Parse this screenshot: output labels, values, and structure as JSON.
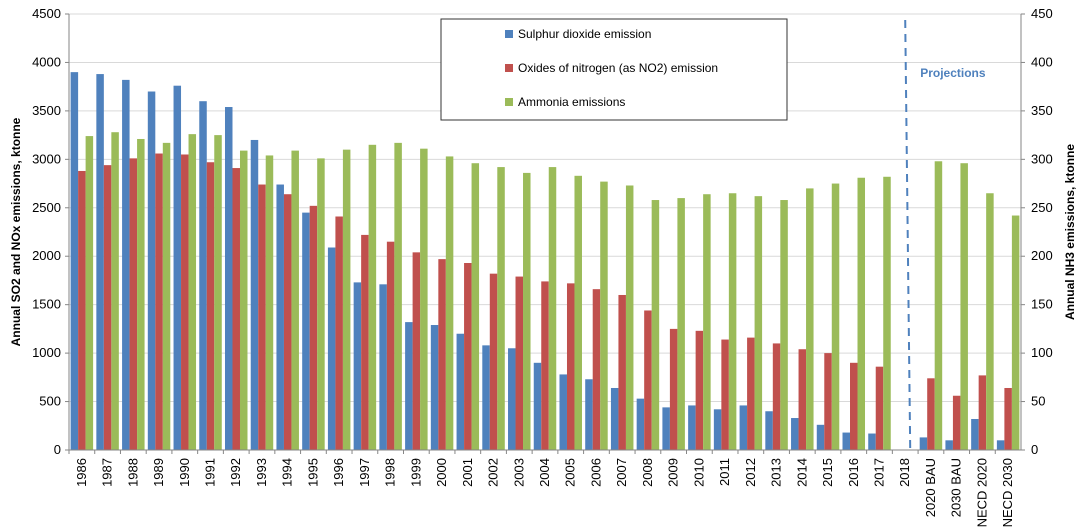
{
  "chart_data": {
    "type": "bar",
    "categories": [
      "1986",
      "1987",
      "1988",
      "1989",
      "1990",
      "1991",
      "1992",
      "1993",
      "1994",
      "1995",
      "1996",
      "1997",
      "1998",
      "1999",
      "2000",
      "2001",
      "2002",
      "2003",
      "2004",
      "2005",
      "2006",
      "2007",
      "2008",
      "2009",
      "2010",
      "2011",
      "2012",
      "2013",
      "2014",
      "2015",
      "2016",
      "2017",
      "2018",
      "2020 BAU",
      "2030 BAU",
      "NECD 2020",
      "NECD 2030"
    ],
    "series": [
      {
        "name": "Sulphur dioxide emission",
        "axis": "left",
        "color": "#4f81bd",
        "values": [
          3900,
          3880,
          3820,
          3700,
          3760,
          3600,
          3540,
          3200,
          2740,
          2450,
          2090,
          1730,
          1710,
          1320,
          1290,
          1200,
          1080,
          1050,
          900,
          780,
          730,
          640,
          530,
          440,
          460,
          420,
          460,
          400,
          330,
          260,
          180,
          170,
          null,
          130,
          100,
          320,
          100
        ]
      },
      {
        "name": "Oxides of nitrogen (as NO2) emission",
        "axis": "left",
        "color": "#c0504d",
        "values": [
          2880,
          2940,
          3010,
          3060,
          3050,
          2970,
          2910,
          2740,
          2640,
          2520,
          2410,
          2220,
          2150,
          2040,
          1970,
          1930,
          1820,
          1790,
          1740,
          1720,
          1660,
          1600,
          1440,
          1250,
          1230,
          1140,
          1160,
          1100,
          1040,
          1000,
          900,
          860,
          null,
          740,
          560,
          770,
          640
        ]
      },
      {
        "name": "Ammonia emissions",
        "axis": "right",
        "color": "#9bbb59",
        "values": [
          324,
          328,
          321,
          317,
          326,
          325,
          309,
          304,
          309,
          301,
          310,
          315,
          317,
          311,
          303,
          296,
          292,
          286,
          292,
          283,
          277,
          273,
          258,
          260,
          264,
          265,
          262,
          258,
          270,
          275,
          281,
          282,
          null,
          298,
          296,
          265,
          242
        ]
      }
    ],
    "ylabel": "Annual SO2 and NOx emissions, ktonne",
    "y2label": "Annual NH3 emissions, ktonne",
    "ylim": [
      0,
      4500
    ],
    "y2lim": [
      0,
      450
    ],
    "yticks": [
      "0",
      "500",
      "1000",
      "1500",
      "2000",
      "2500",
      "3000",
      "3500",
      "4000",
      "4500"
    ],
    "y2ticks": [
      "0",
      "50",
      "100",
      "150",
      "200",
      "250",
      "300",
      "350",
      "400",
      "450"
    ],
    "annotation": "Projections",
    "annotation_color": "#4f81bd",
    "grid": true,
    "legend_position": "top-center"
  }
}
